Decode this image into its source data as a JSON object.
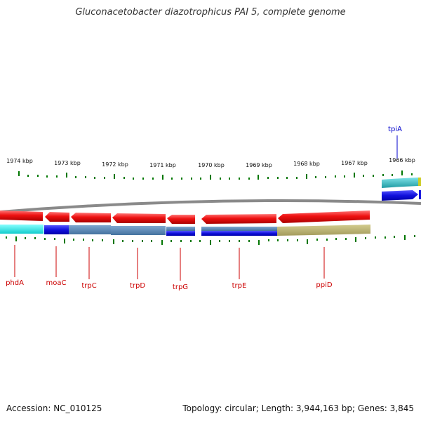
{
  "header": {
    "title": "Gluconacetobacter diazotrophicus PAI 5, complete genome"
  },
  "footer": {
    "accession": "Accession: NC_010125",
    "stats": "Topology: circular; Length: 3,944,163 bp; Genes: 3,845"
  },
  "scale_labels": [
    "1974 kbp",
    "1973 kbp",
    "1972 kbp",
    "1971 kbp",
    "1970 kbp",
    "1969 kbp",
    "1968 kbp",
    "1967 kbp",
    "1966 kbp"
  ],
  "genes": [
    {
      "name": "phdA",
      "color": "#cc0000"
    },
    {
      "name": "moaC",
      "color": "#cc0000"
    },
    {
      "name": "trpC",
      "color": "#cc0000"
    },
    {
      "name": "trpD",
      "color": "#cc0000"
    },
    {
      "name": "trpG",
      "color": "#cc0000"
    },
    {
      "name": "trpE",
      "color": "#cc0000"
    },
    {
      "name": "ppiD",
      "color": "#cc0000"
    },
    {
      "name": "tpiA",
      "color": "#0000cc"
    }
  ],
  "colors": {
    "cds_red": "#ee1111",
    "cds_blue": "#1111dd",
    "backbone": "#888888",
    "tick_green": "#007700",
    "cyan": "#22dddd",
    "steel": "#5a8ab8",
    "olive": "#b8b070",
    "teal": "#30b0b8"
  }
}
